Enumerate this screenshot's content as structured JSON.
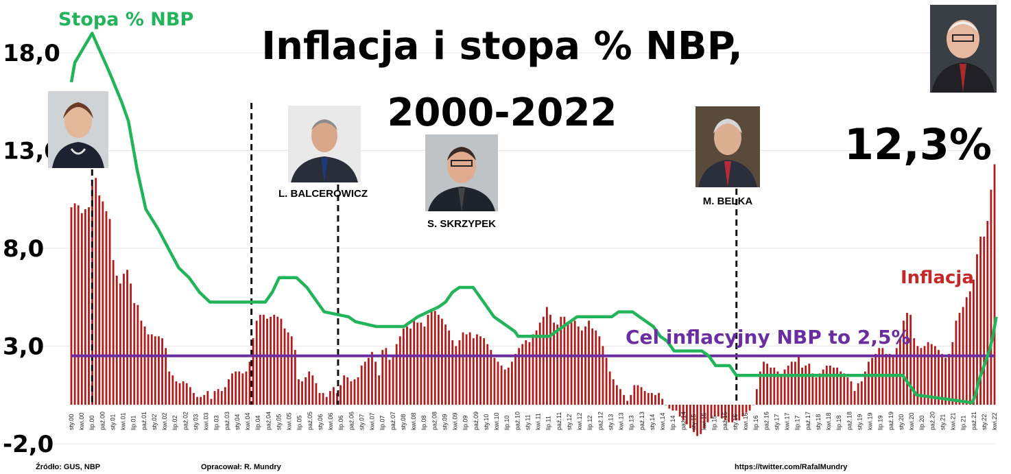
{
  "chart_data": {
    "type": "bar",
    "title_line1": "Inflacja i stopa % NBP,",
    "title_line2": "2000-2022",
    "ylim": [
      -2,
      20
    ],
    "yticks": [
      "18,0",
      "13,0",
      "8,0",
      "3,0",
      "-2,0"
    ],
    "ytick_values": [
      18,
      13,
      8,
      3,
      -2
    ],
    "grid": "horizontal",
    "x_labels": [
      "sty.00",
      "kwi.00",
      "lip.00",
      "paź.00",
      "sty.01",
      "kwi.01",
      "lip.01",
      "paź.01",
      "sty.02",
      "kwi.02",
      "lip.02",
      "paź.02",
      "sty.03",
      "kwi.03",
      "lip.03",
      "paź.03",
      "sty.04",
      "kwi.04",
      "lip.04",
      "paź.04",
      "sty.05",
      "kwi.05",
      "lip.05",
      "paź.05",
      "sty.06",
      "kwi.06",
      "lip.06",
      "paź.06",
      "sty.07",
      "kwi.07",
      "lip.07",
      "paź.07",
      "sty.08",
      "kwi.08",
      "lip.08",
      "paź.08",
      "sty.09",
      "kwi.09",
      "lip.09",
      "paź.09",
      "sty.10",
      "kwi.10",
      "lip.10",
      "paź.10",
      "sty.11",
      "kwi.11",
      "lip.11",
      "paź.11",
      "sty.12",
      "kwi.12",
      "lip.12",
      "paź.12",
      "sty.13",
      "kwi.13",
      "lip.13",
      "paź.13",
      "sty.14",
      "kwi.14",
      "lip.14",
      "paź.14",
      "sty.15",
      "kwi.15",
      "lip.15",
      "paź.15",
      "sty.16",
      "kwi.16",
      "lip.16",
      "paź.16",
      "sty.17",
      "kwi.17",
      "lip.17",
      "paź.17",
      "sty.18",
      "kwi.18",
      "lip.18",
      "paź.18",
      "sty.19",
      "kwi.19",
      "lip.19",
      "paź.19",
      "sty.20",
      "kwi.20",
      "lip.20",
      "paź.20",
      "sty.21",
      "kwi.21",
      "lip.21",
      "paź.21",
      "sty.22",
      "kwi.22"
    ],
    "series": [
      {
        "name": "Inflacja",
        "kind": "bar",
        "color": "#b01c1c",
        "values": [
          10.1,
          10.3,
          10.2,
          9.8,
          10.0,
          10.1,
          11.2,
          11.6,
          10.7,
          10.4,
          9.9,
          9.5,
          7.4,
          6.6,
          6.2,
          6.7,
          6.9,
          6.2,
          5.2,
          5.1,
          4.3,
          4.0,
          3.6,
          3.6,
          3.5,
          3.5,
          3.4,
          2.9,
          1.7,
          1.5,
          1.2,
          1.1,
          1.2,
          1.1,
          0.9,
          0.6,
          0.4,
          0.4,
          0.5,
          0.7,
          0.3,
          0.7,
          0.8,
          0.7,
          0.9,
          1.3,
          1.6,
          1.7,
          1.7,
          1.6,
          1.7,
          2.2,
          3.4,
          4.3,
          4.6,
          4.6,
          4.4,
          4.5,
          4.6,
          4.5,
          4.4,
          3.9,
          3.7,
          3.5,
          2.8,
          1.3,
          1.2,
          1.4,
          1.7,
          1.5,
          1.1,
          0.6,
          0.6,
          0.4,
          0.7,
          0.9,
          0.6,
          1.0,
          1.5,
          1.4,
          1.2,
          1.3,
          1.4,
          2.0,
          2.2,
          2.4,
          2.7,
          2.2,
          1.5,
          2.8,
          2.9,
          2.3,
          2.5,
          3.1,
          3.5,
          3.9,
          4.0,
          3.9,
          4.3,
          4.2,
          4.2,
          4.0,
          4.6,
          4.8,
          4.8,
          4.6,
          4.4,
          4.1,
          3.8,
          3.3,
          3.0,
          3.3,
          3.7,
          3.6,
          3.7,
          3.4,
          3.6,
          3.5,
          3.4,
          3.1,
          2.8,
          2.4,
          2.2,
          2.0,
          1.8,
          1.9,
          2.2,
          2.6,
          2.9,
          3.1,
          3.3,
          3.2,
          3.6,
          3.8,
          4.2,
          4.5,
          5.0,
          4.6,
          4.2,
          4.1,
          4.5,
          4.5,
          4.2,
          4.2,
          4.3,
          4.0,
          3.8,
          4.0,
          4.3,
          3.9,
          3.8,
          3.5,
          3.0,
          2.4,
          1.7,
          1.3,
          1.0,
          0.8,
          0.5,
          0.2,
          0.5,
          1.0,
          1.0,
          0.9,
          0.7,
          0.6,
          0.6,
          0.5,
          0.6,
          0.3,
          0.0,
          -0.2,
          -0.3,
          -0.3,
          -0.6,
          -0.8,
          -1.0,
          -1.2,
          -1.4,
          -1.6,
          -1.5,
          -1.2,
          -0.9,
          -0.7,
          -0.6,
          -0.6,
          -0.7,
          -0.8,
          -0.9,
          -0.9,
          -0.8,
          -0.8,
          -0.6,
          -0.4,
          -0.3,
          0.0,
          0.8,
          1.7,
          2.2,
          2.1,
          1.9,
          1.9,
          1.7,
          1.5,
          1.8,
          2.0,
          2.2,
          2.2,
          2.5,
          1.9,
          2.0,
          2.1,
          1.6,
          1.4,
          1.6,
          1.8,
          2.0,
          2.0,
          1.9,
          1.9,
          1.7,
          1.6,
          1.4,
          1.2,
          0.7,
          1.1,
          1.2,
          1.7,
          2.2,
          2.4,
          2.6,
          2.9,
          2.9,
          2.6,
          2.6,
          2.5,
          2.9,
          3.4,
          4.3,
          4.7,
          4.6,
          3.4,
          3.0,
          2.9,
          3.0,
          3.2,
          3.1,
          3.0,
          2.8,
          2.6,
          2.4,
          2.6,
          3.2,
          4.3,
          4.7,
          5.0,
          5.5,
          5.8,
          6.4,
          7.7,
          8.6,
          8.6,
          9.4,
          11.0,
          12.3
        ]
      },
      {
        "name": "Stopa % NBP",
        "kind": "step-line",
        "color": "#22b45a",
        "points": [
          [
            0,
            16.5
          ],
          [
            2,
            17.5
          ],
          [
            12,
            19.0
          ],
          [
            22,
            17.0
          ],
          [
            29,
            15.5
          ],
          [
            33,
            14.5
          ],
          [
            38,
            12.0
          ],
          [
            43,
            10.0
          ],
          [
            50,
            9.0
          ],
          [
            56,
            8.0
          ],
          [
            62,
            7.0
          ],
          [
            68,
            6.5
          ],
          [
            74,
            5.75
          ],
          [
            80,
            5.25
          ],
          [
            112,
            5.25
          ],
          [
            116,
            5.75
          ],
          [
            120,
            6.5
          ],
          [
            130,
            6.5
          ],
          [
            136,
            6.0
          ],
          [
            140,
            5.5
          ],
          [
            144,
            5.0
          ],
          [
            146,
            4.75
          ],
          [
            160,
            4.5
          ],
          [
            164,
            4.25
          ],
          [
            176,
            4.0
          ],
          [
            192,
            4.0
          ],
          [
            196,
            4.25
          ],
          [
            200,
            4.5
          ],
          [
            206,
            4.75
          ],
          [
            212,
            5.0
          ],
          [
            216,
            5.25
          ],
          [
            220,
            5.75
          ],
          [
            224,
            6.0
          ],
          [
            232,
            6.0
          ],
          [
            236,
            5.5
          ],
          [
            240,
            5.0
          ],
          [
            244,
            4.5
          ],
          [
            248,
            4.25
          ],
          [
            252,
            4.0
          ],
          [
            256,
            3.75
          ],
          [
            258,
            3.5
          ],
          [
            276,
            3.5
          ],
          [
            280,
            3.75
          ],
          [
            284,
            4.0
          ],
          [
            288,
            4.25
          ],
          [
            292,
            4.5
          ],
          [
            300,
            4.5
          ],
          [
            312,
            4.5
          ],
          [
            316,
            4.75
          ],
          [
            324,
            4.75
          ],
          [
            328,
            4.5
          ],
          [
            332,
            4.25
          ],
          [
            336,
            4.0
          ],
          [
            338,
            3.75
          ],
          [
            340,
            3.5
          ],
          [
            344,
            3.25
          ],
          [
            346,
            3.0
          ],
          [
            348,
            2.75
          ],
          [
            352,
            2.75
          ],
          [
            364,
            2.75
          ],
          [
            368,
            2.5
          ],
          [
            372,
            2.0
          ],
          [
            380,
            2.0
          ],
          [
            384,
            1.5
          ],
          [
            480,
            1.5
          ],
          [
            488,
            0.5
          ],
          [
            520,
            0.1
          ],
          [
            522,
            0.5
          ],
          [
            524,
            1.25
          ],
          [
            526,
            1.75
          ],
          [
            528,
            2.25
          ],
          [
            530,
            2.75
          ],
          [
            532,
            3.5
          ],
          [
            534,
            4.5
          ]
        ]
      },
      {
        "name": "Cel inflacyjny NBP to 2,5%",
        "kind": "hline",
        "color": "#6a2ea0",
        "value": 2.5
      }
    ],
    "labels": {
      "rate": "Stopa % NBP",
      "inflation": "Inflacja",
      "target": "Cel inflacyjny NBP to 2,5%",
      "last_value": "12,3%"
    },
    "governors": [
      {
        "name": "",
        "change_at_month": 12
      },
      {
        "name": "L. BALCEROWICZ",
        "change_at_month": 104
      },
      {
        "name": "S. SKRZYPEK",
        "change_at_month": 154
      },
      {
        "name": "M. BELKA",
        "change_at_month": 384
      }
    ]
  },
  "footer": {
    "source": "Źródło: GUS, NBP",
    "author": "Opracował: R. Mundry",
    "url": "https://twitter.com/RafalMundry"
  },
  "colors": {
    "bar": "#b01c1c",
    "rate": "#22b45a",
    "target": "#6a2ea0",
    "grid": "#e6e6e6"
  }
}
